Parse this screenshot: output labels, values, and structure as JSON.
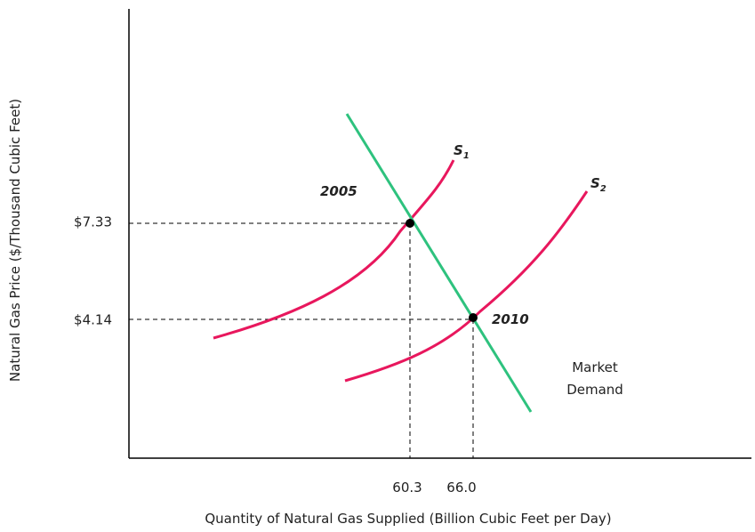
{
  "axes": {
    "x_title": "Quantity of Natural Gas Supplied (Billion Cubic Feet per Day)",
    "y_title": "Natural Gas Price ($/Thousand Cubic Feet)"
  },
  "ticks": {
    "y": [
      "$7.33",
      "$4.14"
    ],
    "x": [
      "60.3",
      "66.0"
    ]
  },
  "curves": [
    {
      "label": "S",
      "subscript": "1"
    },
    {
      "label": "S",
      "subscript": "2"
    }
  ],
  "demand_label": [
    "Market",
    "Demand"
  ],
  "points": [
    "2005",
    "2010"
  ]
}
